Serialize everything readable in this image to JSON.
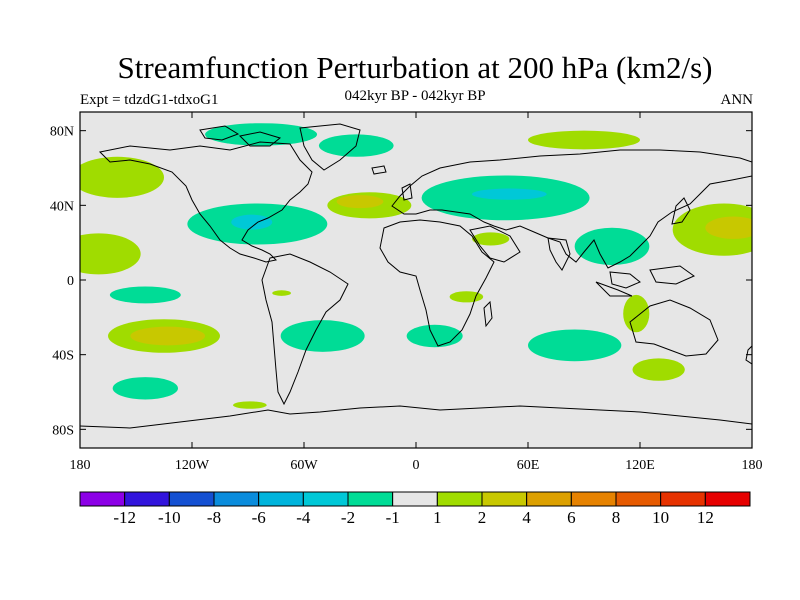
{
  "header": {
    "title": "Streamfunction Perturbation at 200 hPa (km2/s)",
    "experiment": "Expt = tdzdG1-tdxoG1",
    "subtitle": "042kyr BP - 042kyr BP",
    "season": "ANN"
  },
  "map": {
    "projection": "cylindrical-equidistant",
    "lon_range": [
      -180,
      180
    ],
    "lat_range": [
      -90,
      90
    ],
    "background_color": "#e6e6e6",
    "y_tick_labels": [
      "80N",
      "40N",
      "0",
      "40S",
      "80S"
    ],
    "x_tick_labels": [
      "180",
      "120W",
      "60W",
      "0",
      "60E",
      "120E",
      "180"
    ],
    "anomaly_regions": [
      {
        "level": "-1..-2",
        "color": "#00dc96",
        "lon": -83,
        "lat": 78,
        "w": 60,
        "h": 12
      },
      {
        "level": "-1..-2",
        "color": "#00dc96",
        "lon": -32,
        "lat": 72,
        "w": 40,
        "h": 12
      },
      {
        "level": "-1..-2",
        "color": "#00dc96",
        "lon": -85,
        "lat": 30,
        "w": 75,
        "h": 22
      },
      {
        "level": "-1..-2",
        "color": "#00dc96",
        "lon": 48,
        "lat": 44,
        "w": 90,
        "h": 24
      },
      {
        "level": "-1..-2",
        "color": "#00dc96",
        "lon": 105,
        "lat": 18,
        "w": 40,
        "h": 20
      },
      {
        "level": "-1..-2",
        "color": "#00dc96",
        "lon": -145,
        "lat": -8,
        "w": 38,
        "h": 9
      },
      {
        "level": "-1..-2",
        "color": "#00dc96",
        "lon": -50,
        "lat": -30,
        "w": 45,
        "h": 17
      },
      {
        "level": "-1..-2",
        "color": "#00dc96",
        "lon": 10,
        "lat": -30,
        "w": 30,
        "h": 12
      },
      {
        "level": "-1..-2",
        "color": "#00dc96",
        "lon": 85,
        "lat": -35,
        "w": 50,
        "h": 17
      },
      {
        "level": "-1..-2",
        "color": "#00dc96",
        "lon": -145,
        "lat": -58,
        "w": 35,
        "h": 12
      },
      {
        "level": "-2..-4",
        "color": "#00c8d7",
        "lon": -88,
        "lat": 31,
        "w": 22,
        "h": 8
      },
      {
        "level": "-2..-4",
        "color": "#00c8d7",
        "lon": 50,
        "lat": 46,
        "w": 40,
        "h": 6
      },
      {
        "level": "1..2",
        "color": "#a0dc00",
        "lon": -160,
        "lat": 55,
        "w": 50,
        "h": 22
      },
      {
        "level": "1..2",
        "color": "#a0dc00",
        "lon": -25,
        "lat": 40,
        "w": 45,
        "h": 14
      },
      {
        "level": "1..2",
        "color": "#a0dc00",
        "lon": -170,
        "lat": 14,
        "w": 45,
        "h": 22
      },
      {
        "level": "1..2",
        "color": "#a0dc00",
        "lon": -135,
        "lat": -30,
        "w": 60,
        "h": 18
      },
      {
        "level": "1..2",
        "color": "#a0dc00",
        "lon": 90,
        "lat": 75,
        "w": 60,
        "h": 10
      },
      {
        "level": "1..2",
        "color": "#a0dc00",
        "lon": 40,
        "lat": 22,
        "w": 20,
        "h": 7
      },
      {
        "level": "1..2",
        "color": "#a0dc00",
        "lon": 165,
        "lat": 27,
        "w": 55,
        "h": 28
      },
      {
        "level": "1..2",
        "color": "#a0dc00",
        "lon": 27,
        "lat": -9,
        "w": 18,
        "h": 6
      },
      {
        "level": "1..2",
        "color": "#a0dc00",
        "lon": 118,
        "lat": -18,
        "w": 14,
        "h": 20
      },
      {
        "level": "1..2",
        "color": "#a0dc00",
        "lon": 130,
        "lat": -48,
        "w": 28,
        "h": 12
      },
      {
        "level": "1..2",
        "color": "#a0dc00",
        "lon": -72,
        "lat": -7,
        "w": 10,
        "h": 3
      },
      {
        "level": "1..2",
        "color": "#a0dc00",
        "lon": -89,
        "lat": -67,
        "w": 18,
        "h": 4
      },
      {
        "level": "2..4",
        "color": "#c8c800",
        "lon": -133,
        "lat": -30,
        "w": 40,
        "h": 10
      },
      {
        "level": "2..4",
        "color": "#c8c800",
        "lon": -30,
        "lat": 42,
        "w": 25,
        "h": 7
      },
      {
        "level": "2..4",
        "color": "#c8c800",
        "lon": 170,
        "lat": 28,
        "w": 30,
        "h": 12
      }
    ]
  },
  "colorbar": {
    "colors": [
      "#8c00e6",
      "#3214dc",
      "#1450d2",
      "#0a8cdc",
      "#00b4dc",
      "#00c8d7",
      "#00dc96",
      "#e6e6e6",
      "#a0dc00",
      "#c8c800",
      "#dca000",
      "#e68200",
      "#e65a00",
      "#e63200",
      "#e60000"
    ],
    "labels": [
      "-12",
      "-10",
      "-8",
      "-6",
      "-4",
      "-2",
      "-1",
      "1",
      "2",
      "4",
      "6",
      "8",
      "10",
      "12"
    ]
  }
}
